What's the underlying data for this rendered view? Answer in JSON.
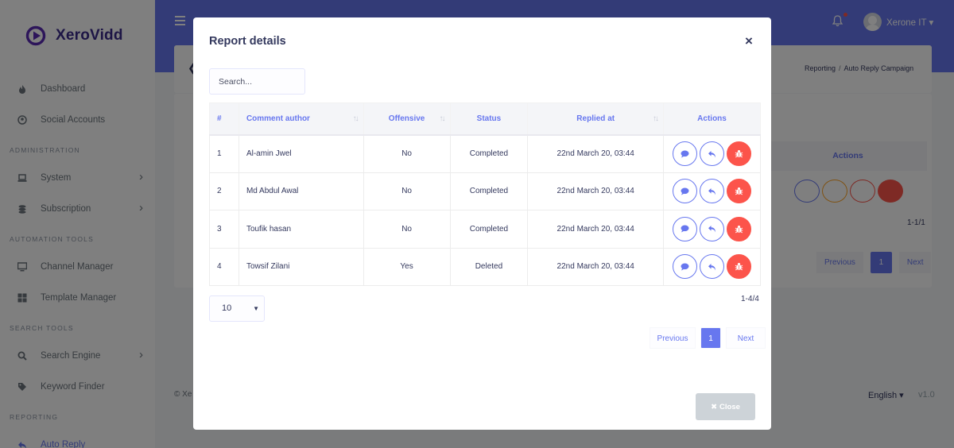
{
  "brand": {
    "name": "XeroVidd"
  },
  "sidebar": {
    "items": [
      {
        "type": "item",
        "label": "Dashboard",
        "icon": "fire-icon"
      },
      {
        "type": "item",
        "label": "Social Accounts",
        "icon": "user-circle-icon"
      },
      {
        "type": "header",
        "label": "ADMINISTRATION"
      },
      {
        "type": "item",
        "label": "System",
        "icon": "laptop-icon",
        "chevron": true
      },
      {
        "type": "item",
        "label": "Subscription",
        "icon": "coins-icon",
        "chevron": true
      },
      {
        "type": "header",
        "label": "AUTOMATION TOOLS"
      },
      {
        "type": "item",
        "label": "Channel Manager",
        "icon": "desktop-icon"
      },
      {
        "type": "item",
        "label": "Template Manager",
        "icon": "grid-icon"
      },
      {
        "type": "header",
        "label": "SEARCH TOOLS"
      },
      {
        "type": "item",
        "label": "Search Engine",
        "icon": "search-icon",
        "chevron": true
      },
      {
        "type": "item",
        "label": "Keyword Finder",
        "icon": "tags-icon"
      },
      {
        "type": "header",
        "label": "REPORTING"
      },
      {
        "type": "item",
        "label": "Auto Reply",
        "icon": "reply-icon",
        "active": true
      }
    ]
  },
  "topbar": {
    "user_name": "Xerone IT ▾"
  },
  "breadcrumb": {
    "parent": "Reporting",
    "separator": "/",
    "current": "Auto Reply Campaign"
  },
  "background_table": {
    "actions_header": "Actions",
    "count": "1-1/1",
    "pagination": {
      "prev": "Previous",
      "page": "1",
      "next": "Next"
    }
  },
  "footer": {
    "copyright": "© Xe",
    "language": "English ▾",
    "version": "v1.0"
  },
  "modal": {
    "title": "Report details",
    "close_icon": "×",
    "search": {
      "placeholder": "Search...",
      "value": ""
    },
    "table": {
      "headers": [
        "#",
        "Comment author",
        "Offensive",
        "Status",
        "Replied at",
        "Actions"
      ],
      "rows": [
        {
          "num": "1",
          "author": "Al-amin Jwel",
          "offensive": "No",
          "status": "Completed",
          "replied_at": "22nd March 20, 03:44"
        },
        {
          "num": "2",
          "author": "Md Abdul Awal",
          "offensive": "No",
          "status": "Completed",
          "replied_at": "22nd March 20, 03:44"
        },
        {
          "num": "3",
          "author": "Toufik hasan",
          "offensive": "No",
          "status": "Completed",
          "replied_at": "22nd March 20, 03:44"
        },
        {
          "num": "4",
          "author": "Towsif Zilani",
          "offensive": "Yes",
          "status": "Deleted",
          "replied_at": "22nd March 20, 03:44"
        }
      ]
    },
    "page_size": "10",
    "count": "1-4/4",
    "pagination": {
      "prev": "Previous",
      "page": "1",
      "next": "Next"
    },
    "close_button": "Close"
  },
  "colors": {
    "primary": "#6777ef",
    "danger": "#fc544b",
    "success": "#47c363",
    "info": "#3abaf4"
  }
}
